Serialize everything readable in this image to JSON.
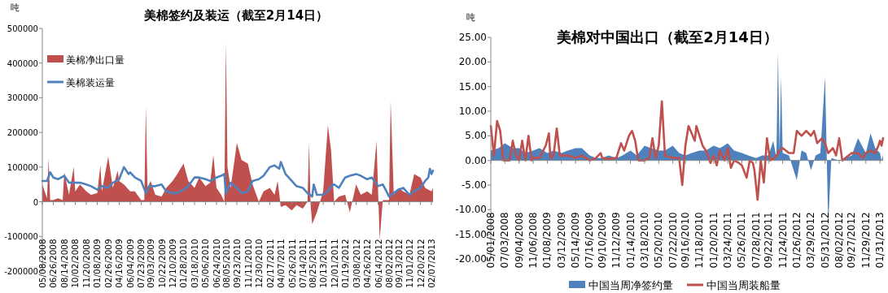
{
  "chart_data": [
    {
      "type": "area",
      "title": "美棉签约及装运（截至2月14日）",
      "ylabel": "吨",
      "legend": "top left",
      "xlim": [
        "2008-05-08",
        "2013-02-14"
      ],
      "ylim": [
        -200000,
        500000
      ],
      "yticks": [
        -200000,
        -100000,
        0,
        100000,
        200000,
        300000,
        400000,
        500000
      ],
      "xticks": [
        {
          "value": "2008-05-08",
          "label": "05/08/2008"
        },
        {
          "value": "2008-06-26",
          "label": "06/26/2008"
        },
        {
          "value": "2008-08-14",
          "label": "08/14/2008"
        },
        {
          "value": "2008-10-02",
          "label": "10/02/2008"
        },
        {
          "value": "2008-11-20",
          "label": "11/20/2008"
        },
        {
          "value": "2009-01-08",
          "label": "01/08/2009"
        },
        {
          "value": "2009-02-26",
          "label": "02/26/2009"
        },
        {
          "value": "2009-04-16",
          "label": "04/16/2009"
        },
        {
          "value": "2009-06-04",
          "label": "06/04/2009"
        },
        {
          "value": "2009-07-23",
          "label": "07/23/2009"
        },
        {
          "value": "2009-09-03",
          "label": "09/03/2009"
        },
        {
          "value": "2009-10-22",
          "label": "10/22/2009"
        },
        {
          "value": "2009-12-10",
          "label": "12/10/2009"
        },
        {
          "value": "2010-01-28",
          "label": "01/28/2010"
        },
        {
          "value": "2010-03-18",
          "label": "03/18/2010"
        },
        {
          "value": "2010-05-06",
          "label": "05/06/2010"
        },
        {
          "value": "2010-06-24",
          "label": "06/24/2010"
        },
        {
          "value": "2010-08-05",
          "label": "08/05/2010"
        },
        {
          "value": "2010-09-23",
          "label": "09/23/2010"
        },
        {
          "value": "2010-11-11",
          "label": "11/11/2010"
        },
        {
          "value": "2010-12-30",
          "label": "12/30/2010"
        },
        {
          "value": "2011-02-17",
          "label": "02/17/2011"
        },
        {
          "value": "2011-04-07",
          "label": "04/07/2011"
        },
        {
          "value": "2011-05-26",
          "label": "05/26/2011"
        },
        {
          "value": "2011-07-14",
          "label": "07/14/2011"
        },
        {
          "value": "2011-08-25",
          "label": "08/25/2011"
        },
        {
          "value": "2011-10-13",
          "label": "10/13/2011"
        },
        {
          "value": "2011-12-01",
          "label": "12/01/2011"
        },
        {
          "value": "2012-01-19",
          "label": "01/19/2012"
        },
        {
          "value": "2012-03-08",
          "label": "03/08/2012"
        },
        {
          "value": "2012-04-26",
          "label": "04/26/2012"
        },
        {
          "value": "2012-06-14",
          "label": "06/14/2012"
        },
        {
          "value": "2012-08-02",
          "label": "08/02/2012"
        },
        {
          "value": "2012-09-13",
          "label": "09/13/2012"
        },
        {
          "value": "2012-11-01",
          "label": "11/01/2012"
        },
        {
          "value": "2012-12-20",
          "label": "12/20/2012"
        },
        {
          "value": "2013-02-07",
          "label": "02/07/2013"
        }
      ],
      "series": [
        {
          "name": "美棉净出口量",
          "type": "area",
          "color": "#c0504d",
          "x": [
            "2008-05-08",
            "2008-05-29",
            "2008-06-05",
            "2008-06-12",
            "2008-06-26",
            "2008-07-17",
            "2008-08-07",
            "2008-08-14",
            "2008-09-04",
            "2008-09-25",
            "2008-10-02",
            "2008-10-23",
            "2008-11-20",
            "2008-12-11",
            "2009-01-08",
            "2009-01-22",
            "2009-01-29",
            "2009-02-26",
            "2009-03-19",
            "2009-04-09",
            "2009-04-16",
            "2009-05-07",
            "2009-06-04",
            "2009-06-25",
            "2009-07-23",
            "2009-08-06",
            "2009-08-13",
            "2009-08-20",
            "2009-09-03",
            "2009-09-24",
            "2009-10-22",
            "2009-11-12",
            "2009-12-10",
            "2009-12-31",
            "2010-01-28",
            "2010-02-18",
            "2010-03-18",
            "2010-04-08",
            "2010-05-06",
            "2010-05-27",
            "2010-06-10",
            "2010-06-24",
            "2010-07-15",
            "2010-07-29",
            "2010-08-05",
            "2010-08-12",
            "2010-08-26",
            "2010-09-23",
            "2010-10-14",
            "2010-11-11",
            "2010-12-02",
            "2010-12-30",
            "2011-01-20",
            "2011-02-17",
            "2011-03-10",
            "2011-03-24",
            "2011-04-07",
            "2011-04-28",
            "2011-05-26",
            "2011-06-16",
            "2011-07-14",
            "2011-08-04",
            "2011-08-11",
            "2011-08-18",
            "2011-08-25",
            "2011-09-15",
            "2011-10-13",
            "2011-11-03",
            "2011-11-17",
            "2011-12-01",
            "2011-12-22",
            "2012-01-19",
            "2012-02-09",
            "2012-03-08",
            "2012-03-29",
            "2012-04-26",
            "2012-05-17",
            "2012-06-07",
            "2012-06-21",
            "2012-07-05",
            "2012-08-02",
            "2012-08-09",
            "2012-08-23",
            "2012-09-13",
            "2012-10-04",
            "2012-11-01",
            "2012-11-22",
            "2012-12-20",
            "2013-01-10",
            "2013-02-07",
            "2013-02-14"
          ],
          "values": [
            50000,
            10000,
            125000,
            5000,
            5000,
            10000,
            5000,
            85000,
            20000,
            100000,
            30000,
            50000,
            30000,
            20000,
            25000,
            105000,
            30000,
            130000,
            40000,
            90000,
            60000,
            50000,
            30000,
            30000,
            5000,
            5000,
            275000,
            40000,
            60000,
            20000,
            15000,
            40000,
            60000,
            80000,
            110000,
            60000,
            40000,
            70000,
            45000,
            55000,
            135000,
            40000,
            20000,
            0,
            460000,
            100000,
            40000,
            170000,
            120000,
            110000,
            50000,
            0,
            30000,
            40000,
            20000,
            60000,
            -15000,
            -10000,
            -25000,
            -10000,
            -20000,
            0,
            170000,
            -10000,
            -65000,
            -30000,
            30000,
            220000,
            150000,
            0,
            15000,
            20000,
            -30000,
            50000,
            20000,
            30000,
            20000,
            175000,
            -110000,
            5000,
            5000,
            290000,
            20000,
            40000,
            30000,
            20000,
            80000,
            70000,
            40000,
            30000,
            40000
          ]
        },
        {
          "name": "美棉装运量",
          "type": "line",
          "color": "#4f81bd",
          "x": [
            "2008-05-08",
            "2008-05-29",
            "2008-06-12",
            "2008-06-26",
            "2008-07-17",
            "2008-08-14",
            "2008-09-04",
            "2008-10-02",
            "2008-10-23",
            "2008-11-20",
            "2008-12-11",
            "2009-01-08",
            "2009-01-29",
            "2009-02-26",
            "2009-03-19",
            "2009-04-16",
            "2009-05-07",
            "2009-05-28",
            "2009-06-04",
            "2009-06-25",
            "2009-07-23",
            "2009-08-13",
            "2009-08-27",
            "2009-09-24",
            "2009-10-22",
            "2009-11-12",
            "2009-12-10",
            "2009-12-31",
            "2010-01-28",
            "2010-02-18",
            "2010-03-18",
            "2010-04-08",
            "2010-05-06",
            "2010-05-27",
            "2010-06-24",
            "2010-07-15",
            "2010-07-29",
            "2010-08-05",
            "2010-08-26",
            "2010-09-23",
            "2010-10-14",
            "2010-11-11",
            "2010-12-02",
            "2010-12-30",
            "2011-01-20",
            "2011-02-17",
            "2011-03-10",
            "2011-03-31",
            "2011-04-07",
            "2011-04-28",
            "2011-05-26",
            "2011-06-16",
            "2011-07-14",
            "2011-08-04",
            "2011-08-25",
            "2011-09-01",
            "2011-09-15",
            "2011-10-13",
            "2011-11-03",
            "2011-11-17",
            "2011-12-01",
            "2011-12-22",
            "2012-01-19",
            "2012-02-09",
            "2012-03-08",
            "2012-03-29",
            "2012-04-26",
            "2012-05-17",
            "2012-06-14",
            "2012-07-05",
            "2012-08-02",
            "2012-08-23",
            "2012-09-13",
            "2012-10-04",
            "2012-11-01",
            "2012-11-22",
            "2012-12-20",
            "2013-01-10",
            "2013-01-24",
            "2013-01-31",
            "2013-02-07",
            "2013-02-14"
          ],
          "values": [
            60000,
            60000,
            85000,
            70000,
            65000,
            75000,
            55000,
            55000,
            55000,
            50000,
            45000,
            35000,
            45000,
            40000,
            55000,
            65000,
            100000,
            80000,
            85000,
            70000,
            60000,
            25000,
            45000,
            45000,
            50000,
            30000,
            25000,
            25000,
            35000,
            45000,
            70000,
            70000,
            65000,
            60000,
            70000,
            75000,
            80000,
            25000,
            55000,
            40000,
            25000,
            30000,
            60000,
            65000,
            75000,
            100000,
            105000,
            95000,
            115000,
            80000,
            60000,
            45000,
            40000,
            25000,
            15000,
            50000,
            20000,
            20000,
            30000,
            45000,
            50000,
            40000,
            70000,
            75000,
            80000,
            75000,
            65000,
            70000,
            45000,
            50000,
            15000,
            25000,
            35000,
            40000,
            20000,
            30000,
            40000,
            60000,
            70000,
            95000,
            80000,
            90000
          ]
        }
      ]
    },
    {
      "type": "area",
      "title": "美棉对中国出口（截至2月14日）",
      "ylabel": "吨",
      "legend": "bottom",
      "xlim": [
        "2008-05-01",
        "2013-02-14"
      ],
      "ylim": [
        -20,
        25
      ],
      "yticks": [
        {
          "value": -20,
          "label": "-20.00"
        },
        {
          "value": -15,
          "label": "-15.00"
        },
        {
          "value": -10,
          "label": "-10.00"
        },
        {
          "value": -5,
          "label": "-5.00"
        },
        {
          "value": 0,
          "label": "0.00"
        },
        {
          "value": 5,
          "label": "5.00"
        },
        {
          "value": 10,
          "label": "10.00"
        },
        {
          "value": 15,
          "label": "15.00"
        },
        {
          "value": 20,
          "label": "20.00"
        },
        {
          "value": 25,
          "label": "25.00"
        }
      ],
      "xticks": [
        {
          "value": "2008-05-01",
          "label": "05/01/2008"
        },
        {
          "value": "2008-07-03",
          "label": "07/03/2008"
        },
        {
          "value": "2008-09-04",
          "label": "09/04/2008"
        },
        {
          "value": "2008-11-06",
          "label": "11/06/2008"
        },
        {
          "value": "2009-01-08",
          "label": "01/08/2009"
        },
        {
          "value": "2009-03-12",
          "label": "03/12/2009"
        },
        {
          "value": "2009-05-14",
          "label": "05/14/2009"
        },
        {
          "value": "2009-07-16",
          "label": "07/16/2009"
        },
        {
          "value": "2009-09-10",
          "label": "09/10/2009"
        },
        {
          "value": "2009-11-12",
          "label": "11/12/2009"
        },
        {
          "value": "2010-01-14",
          "label": "01/14/2010"
        },
        {
          "value": "2010-03-18",
          "label": "03/18/2010"
        },
        {
          "value": "2010-05-20",
          "label": "05/20/2010"
        },
        {
          "value": "2010-07-22",
          "label": "07/22/2010"
        },
        {
          "value": "2010-09-16",
          "label": "09/16/2010"
        },
        {
          "value": "2010-11-18",
          "label": "11/18/2010"
        },
        {
          "value": "2011-01-20",
          "label": "01/20/2011"
        },
        {
          "value": "2011-03-24",
          "label": "03/24/2011"
        },
        {
          "value": "2011-05-26",
          "label": "05/26/2011"
        },
        {
          "value": "2011-07-28",
          "label": "07/28/2011"
        },
        {
          "value": "2011-09-22",
          "label": "09/22/2011"
        },
        {
          "value": "2011-11-24",
          "label": "11/24/2011"
        },
        {
          "value": "2012-01-26",
          "label": "01/26/2012"
        },
        {
          "value": "2012-03-29",
          "label": "03/29/2012"
        },
        {
          "value": "2012-05-31",
          "label": "05/31/2012"
        },
        {
          "value": "2012-08-02",
          "label": "08/02/2012"
        },
        {
          "value": "2012-09-27",
          "label": "09/27/2012"
        },
        {
          "value": "2012-11-29",
          "label": "11/29/2012"
        },
        {
          "value": "2013-01-31",
          "label": "01/31/2013"
        }
      ],
      "series": [
        {
          "name": "中国当周净签约量",
          "type": "area",
          "color": "#4f81bd",
          "x": [
            "2008-05-01",
            "2008-06-05",
            "2008-07-03",
            "2008-08-07",
            "2008-09-04",
            "2008-10-02",
            "2008-11-06",
            "2008-12-04",
            "2009-01-08",
            "2009-02-05",
            "2009-03-12",
            "2009-04-09",
            "2009-05-14",
            "2009-06-11",
            "2009-07-16",
            "2009-08-13",
            "2009-09-10",
            "2009-10-08",
            "2009-11-12",
            "2009-12-10",
            "2010-01-14",
            "2010-02-11",
            "2010-03-18",
            "2010-04-15",
            "2010-05-20",
            "2010-06-17",
            "2010-07-22",
            "2010-08-19",
            "2010-09-16",
            "2010-10-14",
            "2010-11-18",
            "2010-12-16",
            "2011-01-20",
            "2011-02-17",
            "2011-03-24",
            "2011-04-21",
            "2011-05-26",
            "2011-06-23",
            "2011-07-28",
            "2011-08-25",
            "2011-09-22",
            "2011-10-13",
            "2011-10-27",
            "2011-11-03",
            "2011-11-10",
            "2011-11-17",
            "2011-11-24",
            "2011-12-22",
            "2012-01-26",
            "2012-02-16",
            "2012-03-08",
            "2012-03-29",
            "2012-04-19",
            "2012-05-10",
            "2012-05-31",
            "2012-06-07",
            "2012-06-14",
            "2012-06-28",
            "2012-08-02",
            "2012-08-30",
            "2012-09-27",
            "2012-10-25",
            "2012-11-29",
            "2012-12-20",
            "2013-01-10",
            "2013-01-31",
            "2013-02-07",
            "2013-02-14"
          ],
          "values": [
            2,
            2.5,
            3.5,
            2.5,
            2.5,
            1.5,
            2,
            2.5,
            1.5,
            2,
            1.5,
            2,
            2.5,
            2.5,
            1,
            0.5,
            0.5,
            1,
            0.5,
            1,
            2,
            1,
            3,
            2.5,
            2,
            2,
            3,
            1.5,
            1,
            1.5,
            2,
            2,
            3,
            2.5,
            3.5,
            2,
            1.5,
            1,
            0.5,
            1,
            1,
            4,
            0.5,
            22,
            2,
            17,
            1.5,
            1,
            -4,
            2,
            1.5,
            -2,
            1,
            1.5,
            17,
            2,
            -13,
            0.5,
            0,
            0.5,
            1,
            4.5,
            1.5,
            5.5,
            2.5,
            1.5,
            0,
            1
          ]
        },
        {
          "name": "中国当周装船量",
          "type": "line",
          "color": "#c0504d",
          "x": [
            "2008-05-01",
            "2008-05-15",
            "2008-05-29",
            "2008-06-12",
            "2008-06-26",
            "2008-07-03",
            "2008-07-24",
            "2008-08-07",
            "2008-08-21",
            "2008-09-04",
            "2008-09-18",
            "2008-10-02",
            "2008-10-16",
            "2008-10-30",
            "2008-11-06",
            "2008-12-04",
            "2009-01-01",
            "2009-01-15",
            "2009-01-22",
            "2009-02-05",
            "2009-02-19",
            "2009-03-05",
            "2009-03-12",
            "2009-04-09",
            "2009-05-14",
            "2009-06-11",
            "2009-07-16",
            "2009-08-13",
            "2009-09-03",
            "2009-09-10",
            "2009-10-08",
            "2009-11-12",
            "2009-12-03",
            "2009-12-17",
            "2010-01-07",
            "2010-01-21",
            "2010-02-04",
            "2010-02-18",
            "2010-03-18",
            "2010-04-08",
            "2010-04-22",
            "2010-05-06",
            "2010-05-20",
            "2010-06-03",
            "2010-06-17",
            "2010-07-22",
            "2010-08-19",
            "2010-09-02",
            "2010-09-16",
            "2010-09-30",
            "2010-10-14",
            "2010-10-28",
            "2010-11-04",
            "2010-11-18",
            "2010-12-02",
            "2010-12-16",
            "2011-01-06",
            "2011-01-20",
            "2011-02-03",
            "2011-02-17",
            "2011-03-10",
            "2011-03-24",
            "2011-04-07",
            "2011-04-21",
            "2011-05-12",
            "2011-05-26",
            "2011-06-16",
            "2011-06-30",
            "2011-07-14",
            "2011-07-21",
            "2011-08-04",
            "2011-08-18",
            "2011-09-01",
            "2011-09-15",
            "2011-09-29",
            "2011-10-20",
            "2011-11-10",
            "2011-11-24",
            "2011-12-22",
            "2012-01-12",
            "2012-01-26",
            "2012-02-16",
            "2012-03-08",
            "2012-03-29",
            "2012-04-12",
            "2012-04-26",
            "2012-05-17",
            "2012-05-31",
            "2012-06-14",
            "2012-07-05",
            "2012-07-19",
            "2012-08-02",
            "2012-08-16",
            "2012-09-13",
            "2012-09-27",
            "2012-10-25",
            "2012-11-15",
            "2012-11-29",
            "2012-12-20",
            "2013-01-10",
            "2013-01-24",
            "2013-01-31",
            "2013-02-07",
            "2013-02-14"
          ],
          "values": [
            7,
            1,
            8,
            6,
            0,
            0,
            0,
            4,
            1,
            0,
            4,
            0,
            5,
            0,
            0.5,
            0.5,
            3,
            5.5,
            0.5,
            1,
            6.5,
            1,
            1,
            1,
            0.5,
            1,
            0,
            0.5,
            1.5,
            0.5,
            0.3,
            0.5,
            3.5,
            2,
            5,
            6,
            4,
            0,
            0,
            0.5,
            4.5,
            0.5,
            3,
            12,
            1,
            0.5,
            0.5,
            -5,
            3,
            7,
            5.5,
            4,
            7,
            5,
            3,
            2,
            -0.5,
            1,
            -1,
            2,
            0,
            2.5,
            -1.5,
            0,
            -0.5,
            -1,
            -3.5,
            0,
            -0.5,
            -2,
            -8,
            0,
            -4.5,
            4.5,
            0,
            0.5,
            2,
            2.5,
            1.5,
            1.5,
            6,
            5,
            6,
            5,
            6,
            3.5,
            4.5,
            3.5,
            1.5,
            2.5,
            1,
            4.5,
            0,
            1,
            1.5,
            1.5,
            0.5,
            1.5,
            2,
            1.5,
            3,
            4,
            3,
            4.5
          ]
        }
      ]
    }
  ]
}
